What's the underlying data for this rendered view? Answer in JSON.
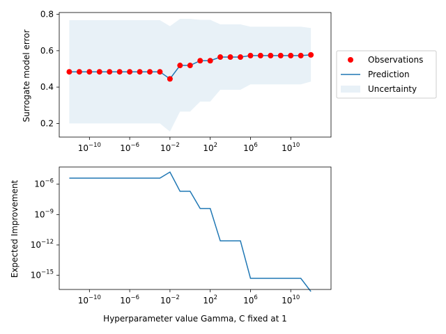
{
  "chart_data": [
    {
      "type": "line",
      "xscale": "log",
      "xlim": [
        1e-13,
        100000000000000.0
      ],
      "ylim": [
        0.125,
        0.81
      ],
      "yticks": [
        0.2,
        0.4,
        0.6,
        0.8
      ],
      "ytick_labels": [
        "0.2",
        "0.4",
        "0.6",
        "0.8"
      ],
      "xticks": [
        1e-10,
        1e-06,
        0.01,
        100,
        1000000.0,
        10000000000.0
      ],
      "xtick_labels": [
        {
          "base": "10",
          "exp": "−10"
        },
        {
          "base": "10",
          "exp": "−6"
        },
        {
          "base": "10",
          "exp": "−2"
        },
        {
          "base": "10",
          "exp": "2"
        },
        {
          "base": "10",
          "exp": "6"
        },
        {
          "base": "10",
          "exp": "10"
        }
      ],
      "ylabel": "Surrogate model error",
      "xlabel": "",
      "colors": {
        "observations": "#ff0000",
        "prediction": "#1f77b4",
        "uncertainty": "#1f77b4"
      },
      "observations": {
        "name": "Observations",
        "x": [
          1e-12,
          1e-11,
          1e-10,
          1e-09,
          1e-08,
          1e-07,
          1e-06,
          1e-05,
          0.0001,
          0.001,
          0.01,
          0.1,
          1,
          10,
          100,
          1000,
          10000,
          100000,
          1000000.0,
          10000000.0,
          100000000.0,
          1000000000.0,
          10000000000.0,
          100000000000.0,
          1000000000000.0
        ],
        "y": [
          0.484,
          0.484,
          0.484,
          0.484,
          0.484,
          0.484,
          0.484,
          0.484,
          0.484,
          0.484,
          0.445,
          0.519,
          0.519,
          0.545,
          0.545,
          0.565,
          0.565,
          0.565,
          0.573,
          0.573,
          0.573,
          0.573,
          0.573,
          0.573,
          0.577
        ]
      },
      "prediction": {
        "name": "Prediction",
        "x": [
          1e-12,
          1e-11,
          1e-10,
          1e-09,
          1e-08,
          1e-07,
          1e-06,
          1e-05,
          0.0001,
          0.001,
          0.01,
          0.1,
          1,
          10,
          100,
          1000,
          10000,
          100000,
          1000000.0,
          10000000.0,
          100000000.0,
          1000000000.0,
          10000000000.0,
          100000000000.0,
          1000000000000.0
        ],
        "y": [
          0.484,
          0.484,
          0.484,
          0.484,
          0.484,
          0.484,
          0.484,
          0.484,
          0.484,
          0.484,
          0.445,
          0.519,
          0.519,
          0.545,
          0.545,
          0.565,
          0.565,
          0.565,
          0.573,
          0.573,
          0.573,
          0.573,
          0.573,
          0.573,
          0.577
        ]
      },
      "uncertainty": {
        "name": "Uncertainty",
        "x": [
          1e-12,
          1e-11,
          1e-10,
          1e-09,
          1e-08,
          1e-07,
          1e-06,
          1e-05,
          0.0001,
          0.001,
          0.01,
          0.1,
          1,
          10,
          100,
          1000,
          10000,
          100000,
          1000000.0,
          10000000.0,
          100000000.0,
          1000000000.0,
          10000000000.0,
          100000000000.0,
          1000000000000.0
        ],
        "lower": [
          0.2,
          0.2,
          0.2,
          0.2,
          0.2,
          0.2,
          0.2,
          0.2,
          0.2,
          0.2,
          0.155,
          0.265,
          0.265,
          0.32,
          0.32,
          0.385,
          0.385,
          0.385,
          0.415,
          0.415,
          0.415,
          0.415,
          0.415,
          0.415,
          0.43
        ],
        "upper": [
          0.768,
          0.768,
          0.768,
          0.768,
          0.768,
          0.768,
          0.768,
          0.768,
          0.768,
          0.768,
          0.735,
          0.775,
          0.775,
          0.77,
          0.77,
          0.745,
          0.745,
          0.745,
          0.732,
          0.732,
          0.732,
          0.732,
          0.732,
          0.732,
          0.725
        ]
      },
      "legend": {
        "placement": "right-outside",
        "entries": [
          "Observations",
          "Prediction",
          "Uncertainty"
        ]
      },
      "grid": false
    },
    {
      "type": "line",
      "xscale": "log",
      "yscale": "log",
      "xlim": [
        1e-13,
        100000000000000.0
      ],
      "ylim_log10": [
        -16.4,
        -4.3
      ],
      "yticks_log10": [
        -6,
        -9,
        -12,
        -15
      ],
      "ytick_labels": [
        {
          "base": "10",
          "exp": "−6"
        },
        {
          "base": "10",
          "exp": "−9"
        },
        {
          "base": "10",
          "exp": "−12"
        },
        {
          "base": "10",
          "exp": "−15"
        }
      ],
      "xticks": [
        1e-10,
        1e-06,
        0.01,
        100,
        1000000.0,
        10000000000.0
      ],
      "xtick_labels": [
        {
          "base": "10",
          "exp": "−10"
        },
        {
          "base": "10",
          "exp": "−6"
        },
        {
          "base": "10",
          "exp": "−2"
        },
        {
          "base": "10",
          "exp": "2"
        },
        {
          "base": "10",
          "exp": "6"
        },
        {
          "base": "10",
          "exp": "10"
        }
      ],
      "ylabel": "Expected Improvement",
      "xlabel": "Hyperparameter value Gamma, C fixed at 1",
      "colors": {
        "line": "#1f77b4"
      },
      "series": [
        {
          "x_log10": [
            -12,
            -11,
            -10,
            -9,
            -8,
            -7,
            -6,
            -5,
            -4,
            -3,
            -2,
            -1,
            0,
            1,
            2,
            3,
            4,
            5,
            6,
            7,
            8,
            9,
            10,
            11,
            12
          ],
          "y_log10": [
            -5.4,
            -5.4,
            -5.4,
            -5.4,
            -5.4,
            -5.4,
            -5.4,
            -5.4,
            -5.4,
            -5.4,
            -4.8,
            -6.7,
            -6.7,
            -8.4,
            -8.4,
            -11.6,
            -11.6,
            -11.6,
            -15.3,
            -15.3,
            -15.3,
            -15.3,
            -15.3,
            -15.3,
            -16.6
          ]
        }
      ],
      "grid": false
    }
  ]
}
